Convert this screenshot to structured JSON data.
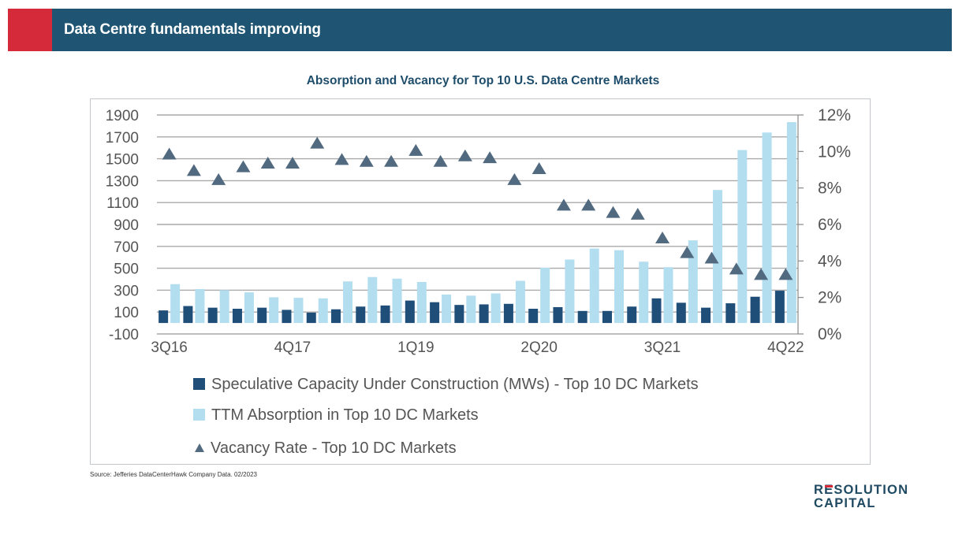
{
  "header": {
    "title": "Data Centre fundamentals improving",
    "accent_color": "#d42a3a",
    "bar_color": "#1f5572"
  },
  "source": "Source: Jefferies DataCenterHawk Company Data. 02/2023",
  "logo": {
    "line1_prefix": "R",
    "line1_mark": "E",
    "line1_rest": "SOLUTION",
    "line2": "CAPITAL"
  },
  "chart_data": {
    "type": "bar",
    "title": "Absorption and Vacancy for Top 10 U.S. Data Centre Markets",
    "xlabel": "",
    "ylabel": "",
    "y2label": "",
    "categories": [
      "3Q16",
      "4Q16",
      "1Q17",
      "2Q17",
      "3Q17",
      "4Q17",
      "1Q18",
      "2Q18",
      "3Q18",
      "4Q18",
      "1Q19",
      "2Q19",
      "3Q19",
      "4Q19",
      "1Q20",
      "2Q20",
      "3Q20",
      "4Q20",
      "1Q21",
      "2Q21",
      "3Q21",
      "4Q21",
      "1Q22",
      "2Q22",
      "3Q22",
      "4Q22"
    ],
    "x_tick_labels": [
      "3Q16",
      "4Q17",
      "1Q19",
      "2Q20",
      "3Q21",
      "4Q22"
    ],
    "ylim": [
      -100,
      1900
    ],
    "y_ticks": [
      -100,
      100,
      300,
      500,
      700,
      900,
      1100,
      1300,
      1500,
      1700,
      1900
    ],
    "y_tick_labels": [
      "-100",
      "100",
      "300",
      "500",
      "700",
      "900",
      "1100",
      "1300",
      "1500",
      "1700",
      "1900"
    ],
    "y2lim": [
      0,
      12
    ],
    "y2_ticks": [
      0,
      2,
      4,
      6,
      8,
      10,
      12
    ],
    "y2_tick_labels": [
      "0%",
      "2%",
      "4%",
      "6%",
      "8%",
      "10%",
      "12%"
    ],
    "grid": true,
    "legend_position": "bottom",
    "series": [
      {
        "name": "Speculative Capacity Under Construction (MWs) - Top 10 DC Markets",
        "kind": "bar",
        "axis": "left",
        "color": "#1f4e79",
        "values": [
          115,
          155,
          140,
          130,
          140,
          120,
          95,
          125,
          150,
          160,
          205,
          190,
          165,
          170,
          175,
          130,
          145,
          110,
          110,
          150,
          225,
          185,
          140,
          180,
          240,
          295
        ]
      },
      {
        "name": "TTM Absorption in Top 10 DC Markets",
        "kind": "bar",
        "axis": "left",
        "color": "#b3def0",
        "values": [
          355,
          310,
          300,
          280,
          235,
          230,
          225,
          380,
          420,
          405,
          375,
          260,
          250,
          270,
          385,
          505,
          580,
          680,
          665,
          560,
          510,
          755,
          1215,
          1580,
          1740,
          1835
        ]
      },
      {
        "name": "Vacancy Rate - Top 10 DC Markets",
        "kind": "scatter",
        "marker": "triangle",
        "axis": "right",
        "unit": "%",
        "color": "#526a80",
        "values": [
          9.8,
          8.9,
          8.4,
          9.1,
          9.3,
          9.3,
          10.4,
          9.5,
          9.4,
          9.4,
          10.0,
          9.4,
          9.7,
          9.6,
          8.4,
          9.0,
          7.0,
          7.0,
          6.6,
          6.5,
          5.2,
          4.4,
          4.1,
          3.5,
          3.2,
          3.2
        ]
      }
    ]
  }
}
